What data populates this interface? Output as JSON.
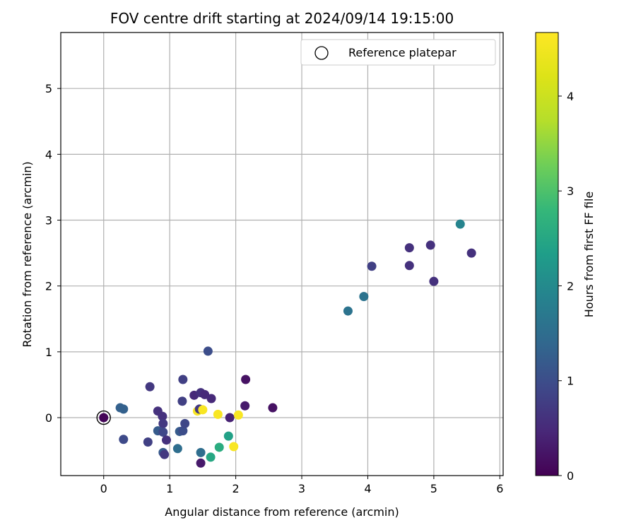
{
  "chart_data": {
    "type": "scatter",
    "title": "FOV centre drift starting at 2024/09/14 19:15:00",
    "xlabel": "Angular distance from reference (arcmin)",
    "ylabel": "Rotation from reference (arcmin)",
    "xlim": [
      -0.65,
      6.05
    ],
    "ylim": [
      -0.88,
      5.85
    ],
    "xticks": [
      "0",
      "1",
      "2",
      "3",
      "4",
      "5",
      "6"
    ],
    "yticks": [
      "0",
      "1",
      "2",
      "3",
      "4",
      "5"
    ],
    "grid": true,
    "legend": {
      "position": "top-right",
      "entries": [
        "Reference platepar"
      ]
    },
    "reference": {
      "x": 0,
      "y": 0
    },
    "colorbar": {
      "label": "Hours from first FF file",
      "range": [
        0,
        4.67
      ],
      "ticks": [
        "0",
        "1",
        "2",
        "3",
        "4"
      ],
      "colormap": "viridis"
    },
    "points": [
      {
        "x": 0.0,
        "y": 0.0,
        "c": 0.05
      },
      {
        "x": 0.25,
        "y": 0.15,
        "c": 1.3
      },
      {
        "x": 0.3,
        "y": 0.13,
        "c": 1.3
      },
      {
        "x": 0.3,
        "y": -0.33,
        "c": 0.95
      },
      {
        "x": 0.67,
        "y": -0.37,
        "c": 0.8
      },
      {
        "x": 0.7,
        "y": 0.47,
        "c": 0.7
      },
      {
        "x": 0.82,
        "y": 0.1,
        "c": 0.6
      },
      {
        "x": 0.82,
        "y": -0.2,
        "c": 1.2
      },
      {
        "x": 0.89,
        "y": 0.02,
        "c": 0.6
      },
      {
        "x": 0.9,
        "y": -0.09,
        "c": 0.7
      },
      {
        "x": 0.9,
        "y": -0.22,
        "c": 0.9
      },
      {
        "x": 0.9,
        "y": -0.53,
        "c": 1.2
      },
      {
        "x": 0.92,
        "y": -0.56,
        "c": 0.7
      },
      {
        "x": 0.95,
        "y": -0.34,
        "c": 0.6
      },
      {
        "x": 1.12,
        "y": -0.47,
        "c": 1.5
      },
      {
        "x": 1.15,
        "y": -0.21,
        "c": 1.2
      },
      {
        "x": 1.19,
        "y": 0.25,
        "c": 0.8
      },
      {
        "x": 1.2,
        "y": 0.58,
        "c": 0.8
      },
      {
        "x": 1.2,
        "y": -0.2,
        "c": 1.0
      },
      {
        "x": 1.23,
        "y": -0.09,
        "c": 0.9
      },
      {
        "x": 1.37,
        "y": 0.34,
        "c": 0.5
      },
      {
        "x": 1.42,
        "y": 0.1,
        "c": 4.6
      },
      {
        "x": 1.45,
        "y": 0.13,
        "c": 0.7
      },
      {
        "x": 1.47,
        "y": 0.38,
        "c": 0.6
      },
      {
        "x": 1.47,
        "y": -0.53,
        "c": 1.5
      },
      {
        "x": 1.47,
        "y": -0.69,
        "c": 0.3
      },
      {
        "x": 1.5,
        "y": 0.12,
        "c": 4.6
      },
      {
        "x": 1.53,
        "y": 0.35,
        "c": 0.5
      },
      {
        "x": 1.58,
        "y": 1.01,
        "c": 1.0
      },
      {
        "x": 1.62,
        "y": -0.6,
        "c": 2.5
      },
      {
        "x": 1.63,
        "y": 0.29,
        "c": 0.5
      },
      {
        "x": 1.73,
        "y": 0.05,
        "c": 4.6
      },
      {
        "x": 1.75,
        "y": -0.45,
        "c": 2.6
      },
      {
        "x": 1.89,
        "y": -0.28,
        "c": 2.4
      },
      {
        "x": 1.91,
        "y": 0.0,
        "c": 0.4
      },
      {
        "x": 1.97,
        "y": -0.44,
        "c": 4.6
      },
      {
        "x": 2.04,
        "y": 0.04,
        "c": 4.6
      },
      {
        "x": 2.14,
        "y": 0.18,
        "c": 0.3
      },
      {
        "x": 2.15,
        "y": 0.58,
        "c": 0.2
      },
      {
        "x": 2.56,
        "y": 0.15,
        "c": 0.2
      },
      {
        "x": 3.7,
        "y": 1.62,
        "c": 1.6
      },
      {
        "x": 3.94,
        "y": 1.84,
        "c": 1.6
      },
      {
        "x": 4.06,
        "y": 2.3,
        "c": 0.8
      },
      {
        "x": 4.63,
        "y": 2.58,
        "c": 0.6
      },
      {
        "x": 4.63,
        "y": 2.31,
        "c": 0.6
      },
      {
        "x": 4.95,
        "y": 2.62,
        "c": 0.6
      },
      {
        "x": 5.0,
        "y": 2.07,
        "c": 0.6
      },
      {
        "x": 5.4,
        "y": 2.94,
        "c": 1.9
      },
      {
        "x": 5.57,
        "y": 2.5,
        "c": 0.6
      }
    ]
  }
}
